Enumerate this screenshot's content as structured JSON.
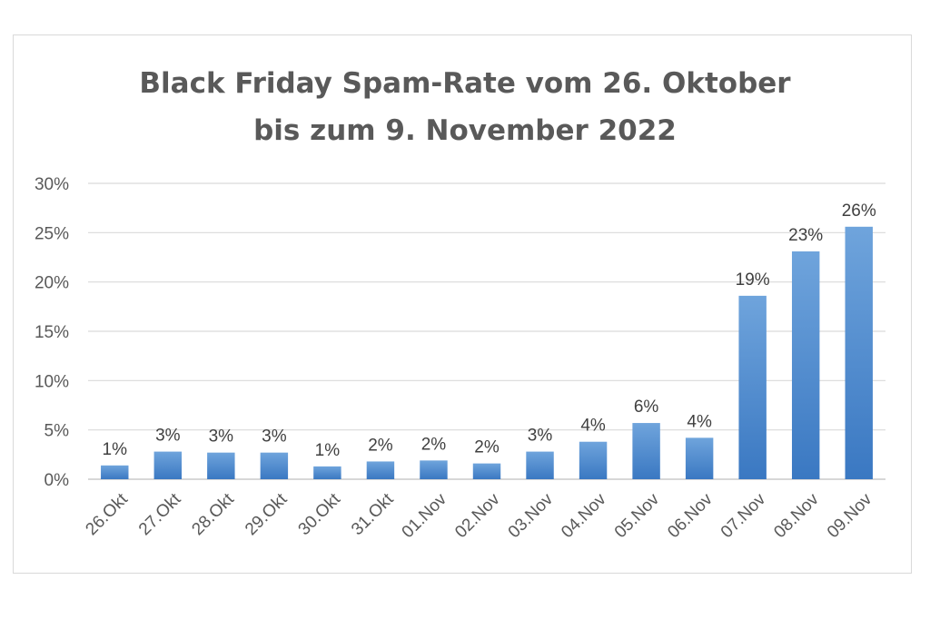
{
  "chart_data": {
    "type": "bar",
    "title": "Black Friday Spam-Rate vom 26. Oktober\nbis zum 9. November 2022",
    "categories": [
      "26.Okt",
      "27.Okt",
      "28.Okt",
      "29.Okt",
      "30.Okt",
      "31.Okt",
      "01.Nov",
      "02.Nov",
      "03.Nov",
      "04.Nov",
      "05.Nov",
      "06.Nov",
      "07.Nov",
      "08.Nov",
      "09.Nov"
    ],
    "values": [
      1.4,
      2.8,
      2.7,
      2.7,
      1.3,
      1.8,
      1.9,
      1.6,
      2.8,
      3.8,
      5.7,
      4.2,
      18.6,
      23.1,
      25.6
    ],
    "data_labels": [
      "1%",
      "3%",
      "3%",
      "3%",
      "1%",
      "2%",
      "2%",
      "2%",
      "3%",
      "4%",
      "6%",
      "4%",
      "19%",
      "23%",
      "26%"
    ],
    "y_ticks": [
      "0%",
      "5%",
      "10%",
      "15%",
      "20%",
      "25%",
      "30%"
    ],
    "ylim": [
      0,
      30
    ],
    "grid": true,
    "legend": "none",
    "colors": {
      "bar_top": "#6fa4dc",
      "bar_bottom": "#3a78c2",
      "grid": "#d9d9d9",
      "text": "#595959"
    }
  }
}
